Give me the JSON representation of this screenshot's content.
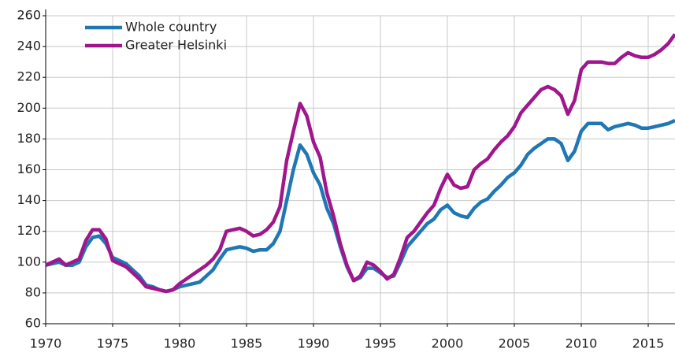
{
  "chart_data": {
    "type": "line",
    "x": [
      1970,
      1971,
      1971.5,
      1972,
      1972.5,
      1973,
      1973.5,
      1974,
      1974.5,
      1975,
      1975.5,
      1976,
      1976.5,
      1977,
      1977.5,
      1978,
      1978.5,
      1979,
      1979.5,
      1980,
      1980.5,
      1981,
      1981.5,
      1982,
      1982.5,
      1983,
      1983.5,
      1984,
      1984.5,
      1985,
      1985.5,
      1986,
      1986.5,
      1987,
      1987.5,
      1988,
      1988.5,
      1989,
      1989.5,
      1990,
      1990.5,
      1991,
      1991.5,
      1992,
      1992.5,
      1993,
      1993.5,
      1994,
      1994.5,
      1995,
      1995.5,
      1996,
      1996.5,
      1997,
      1997.5,
      1998,
      1998.5,
      1999,
      1999.5,
      2000,
      2000.5,
      2001,
      2001.5,
      2002,
      2002.5,
      2003,
      2003.5,
      2004,
      2004.5,
      2005,
      2005.5,
      2006,
      2006.5,
      2007,
      2007.5,
      2008,
      2008.5,
      2009,
      2009.5,
      2010,
      2010.5,
      2011,
      2011.5,
      2012,
      2012.5,
      2013,
      2013.5,
      2014,
      2014.5,
      2015,
      2015.5,
      2016,
      2016.5,
      2017
    ],
    "series": [
      {
        "name": "Whole country",
        "color": "#1f77b4",
        "values": [
          98,
          100,
          98,
          98,
          100,
          110,
          116,
          117,
          112,
          103,
          101,
          99,
          95,
          91,
          85,
          84,
          82,
          81,
          82,
          84,
          85,
          86,
          87,
          91,
          95,
          102,
          108,
          109,
          110,
          109,
          107,
          108,
          108,
          112,
          120,
          140,
          160,
          176,
          170,
          158,
          150,
          135,
          125,
          110,
          97,
          88,
          90,
          96,
          96,
          93,
          90,
          91,
          100,
          110,
          115,
          120,
          125,
          128,
          134,
          137,
          132,
          130,
          129,
          135,
          139,
          141,
          146,
          150,
          155,
          158,
          163,
          170,
          174,
          177,
          180,
          180,
          177,
          166,
          172,
          185,
          190,
          190,
          190,
          186,
          188,
          189,
          190,
          189,
          187,
          187,
          188,
          189,
          190,
          192
        ]
      },
      {
        "name": "Greater Helsinki",
        "color": "#a0168c",
        "values": [
          98,
          102,
          98,
          100,
          102,
          114,
          121,
          121,
          115,
          101,
          99,
          97,
          93,
          89,
          84,
          83,
          82,
          81,
          82,
          86,
          89,
          92,
          95,
          98,
          102,
          108,
          120,
          121,
          122,
          120,
          117,
          118,
          121,
          126,
          136,
          166,
          185,
          203,
          195,
          178,
          168,
          145,
          130,
          112,
          98,
          88,
          91,
          100,
          98,
          94,
          89,
          92,
          103,
          116,
          120,
          126,
          132,
          137,
          148,
          157,
          150,
          148,
          149,
          160,
          164,
          167,
          173,
          178,
          182,
          188,
          197,
          202,
          207,
          212,
          214,
          212,
          208,
          196,
          205,
          225,
          230,
          230,
          230,
          229,
          229,
          233,
          236,
          234,
          233,
          233,
          235,
          238,
          242,
          248
        ]
      }
    ],
    "xlim": [
      1970,
      2017
    ],
    "xticks": [
      1970,
      1975,
      1980,
      1985,
      1990,
      1995,
      2000,
      2005,
      2010,
      2015
    ],
    "ylim": [
      60,
      260
    ],
    "yticks": [
      60,
      80,
      100,
      120,
      140,
      160,
      180,
      200,
      220,
      240,
      260
    ],
    "grid": true,
    "legend": "upper-left"
  }
}
